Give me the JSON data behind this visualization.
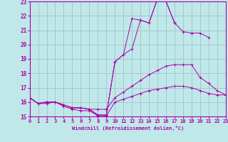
{
  "xlabel": "Windchill (Refroidissement éolien,°C)",
  "background_color": "#c0e8e8",
  "grid_color": "#99bbcc",
  "line_color": "#aa00aa",
  "x_min": 0,
  "x_max": 23,
  "y_min": 15,
  "y_max": 23,
  "series": [
    {
      "x": [
        0,
        1,
        2,
        3,
        4,
        5,
        6,
        7,
        8,
        9,
        10,
        11,
        12,
        13,
        14,
        15,
        16,
        17,
        18,
        19,
        20,
        21,
        22,
        23
      ],
      "y": [
        16.3,
        15.9,
        15.9,
        16.0,
        15.7,
        15.5,
        15.4,
        15.4,
        15.05,
        15.05,
        16.0,
        16.2,
        16.4,
        16.6,
        16.8,
        16.9,
        17.0,
        17.1,
        17.1,
        17.0,
        16.8,
        16.6,
        16.5,
        16.5
      ]
    },
    {
      "x": [
        0,
        1,
        2,
        3,
        4,
        5,
        6,
        7,
        8,
        9,
        10,
        11,
        12,
        13,
        14,
        15,
        16,
        17,
        18,
        19,
        20,
        21,
        22,
        23
      ],
      "y": [
        16.3,
        15.9,
        16.0,
        16.0,
        15.8,
        15.6,
        15.6,
        15.5,
        15.5,
        15.5,
        16.3,
        16.7,
        17.1,
        17.5,
        17.9,
        18.2,
        18.5,
        18.6,
        18.6,
        18.6,
        17.7,
        17.3,
        16.8,
        16.5
      ]
    },
    {
      "x": [
        0,
        1,
        2,
        3,
        4,
        5,
        6,
        7,
        8,
        9,
        10,
        11,
        12,
        13,
        14,
        15,
        16,
        17,
        18,
        19,
        20,
        21
      ],
      "y": [
        16.3,
        15.9,
        16.0,
        16.0,
        15.8,
        15.6,
        15.6,
        15.5,
        15.1,
        15.1,
        18.8,
        19.3,
        19.7,
        21.7,
        21.5,
        23.2,
        23.0,
        21.5,
        20.9,
        20.8,
        20.8,
        20.5
      ]
    },
    {
      "x": [
        0,
        1,
        2,
        3,
        4,
        5,
        6,
        7,
        8,
        9,
        10,
        11,
        12,
        13,
        14,
        15,
        16,
        17
      ],
      "y": [
        16.3,
        15.9,
        16.0,
        16.0,
        15.8,
        15.6,
        15.6,
        15.5,
        15.1,
        15.1,
        18.8,
        19.3,
        21.8,
        21.7,
        21.5,
        23.2,
        23.0,
        21.5
      ]
    }
  ]
}
